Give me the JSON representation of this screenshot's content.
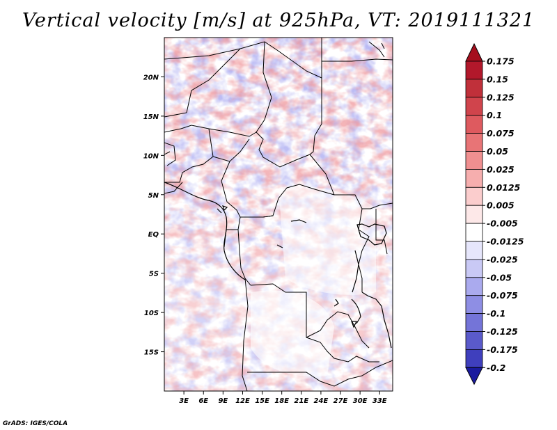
{
  "title": "Vertical velocity [m/s] at 925hPa, VT: 2019111321",
  "credit": "GrADS: IGES/COLA",
  "map": {
    "lon_range": [
      0,
      35
    ],
    "lat_range": [
      -20,
      25
    ],
    "lat_ticks": [
      {
        "value": 20,
        "label": "20N"
      },
      {
        "value": 15,
        "label": "15N"
      },
      {
        "value": 10,
        "label": "10N"
      },
      {
        "value": 5,
        "label": "5N"
      },
      {
        "value": 0,
        "label": "EQ"
      },
      {
        "value": -5,
        "label": "5S"
      },
      {
        "value": -10,
        "label": "10S"
      },
      {
        "value": -15,
        "label": "15S"
      }
    ],
    "lon_ticks": [
      {
        "value": 3,
        "label": "3E"
      },
      {
        "value": 6,
        "label": "6E"
      },
      {
        "value": 9,
        "label": "9E"
      },
      {
        "value": 12,
        "label": "12E"
      },
      {
        "value": 15,
        "label": "15E"
      },
      {
        "value": 18,
        "label": "18E"
      },
      {
        "value": 21,
        "label": "21E"
      },
      {
        "value": 24,
        "label": "24E"
      },
      {
        "value": 27,
        "label": "27E"
      },
      {
        "value": 30,
        "label": "30E"
      },
      {
        "value": 33,
        "label": "33E"
      }
    ]
  },
  "colorbar": {
    "levels": [
      {
        "label": "0.175",
        "color": "#b2182b"
      },
      {
        "label": "0.15",
        "color": "#c0303a"
      },
      {
        "label": "0.125",
        "color": "#d0444c"
      },
      {
        "label": "0.1",
        "color": "#de5a5f"
      },
      {
        "label": "0.075",
        "color": "#e87476"
      },
      {
        "label": "0.05",
        "color": "#f08f90"
      },
      {
        "label": "0.025",
        "color": "#f6aeae"
      },
      {
        "label": "0.0125",
        "color": "#fbcdcd"
      },
      {
        "label": "0.005",
        "color": "#fde8e8"
      },
      {
        "label": "-0.005",
        "color": "#ffffff"
      },
      {
        "label": "-0.0125",
        "color": "#e6e6fb"
      },
      {
        "label": "-0.025",
        "color": "#c9c9f5"
      },
      {
        "label": "-0.05",
        "color": "#aaaaee"
      },
      {
        "label": "-0.075",
        "color": "#8e8ee4"
      },
      {
        "label": "-0.1",
        "color": "#7474d8"
      },
      {
        "label": "-0.125",
        "color": "#5a5acb"
      },
      {
        "label": "-0.175",
        "color": "#3f3fbd"
      },
      {
        "label": "-0.2",
        "color": "#2626ae"
      }
    ],
    "top_color": "#a50f1e",
    "bottom_color": "#1a1a9e"
  }
}
